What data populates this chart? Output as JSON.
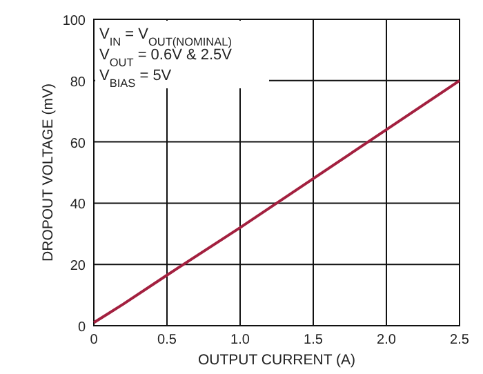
{
  "chart_data": {
    "type": "line",
    "xlabel": "OUTPUT CURRENT (A)",
    "ylabel": "DROPOUT VOLTAGE (mV)",
    "annotations": [
      "V$_{IN}$ = V$_{OUT(NOMINAL)}$",
      "V$_{OUT}$ = 0.6V & 2.5V",
      "V$_{BIAS}$ = 5V"
    ],
    "x": [
      0,
      0.1,
      0.2,
      0.5,
      1.0,
      1.5,
      2.0,
      2.5
    ],
    "series": [
      {
        "color": "#a3203f",
        "values": [
          1,
          4,
          7,
          16.5,
          32,
          48,
          64,
          80
        ]
      }
    ],
    "xlim": [
      0,
      2.5
    ],
    "xticks": [
      {
        "value": 0,
        "label": "0"
      },
      {
        "value": 0.5,
        "label": "0.5"
      },
      {
        "value": 1,
        "label": "1.0"
      },
      {
        "value": 1.5,
        "label": "1.5"
      },
      {
        "value": 2,
        "label": "2.0"
      },
      {
        "value": 2.5,
        "label": "2.5"
      }
    ],
    "ylim": [
      0,
      100
    ],
    "yticks": [
      0,
      20,
      40,
      60,
      80,
      100
    ],
    "grid": true,
    "line_style": "solid",
    "marker": "none"
  }
}
